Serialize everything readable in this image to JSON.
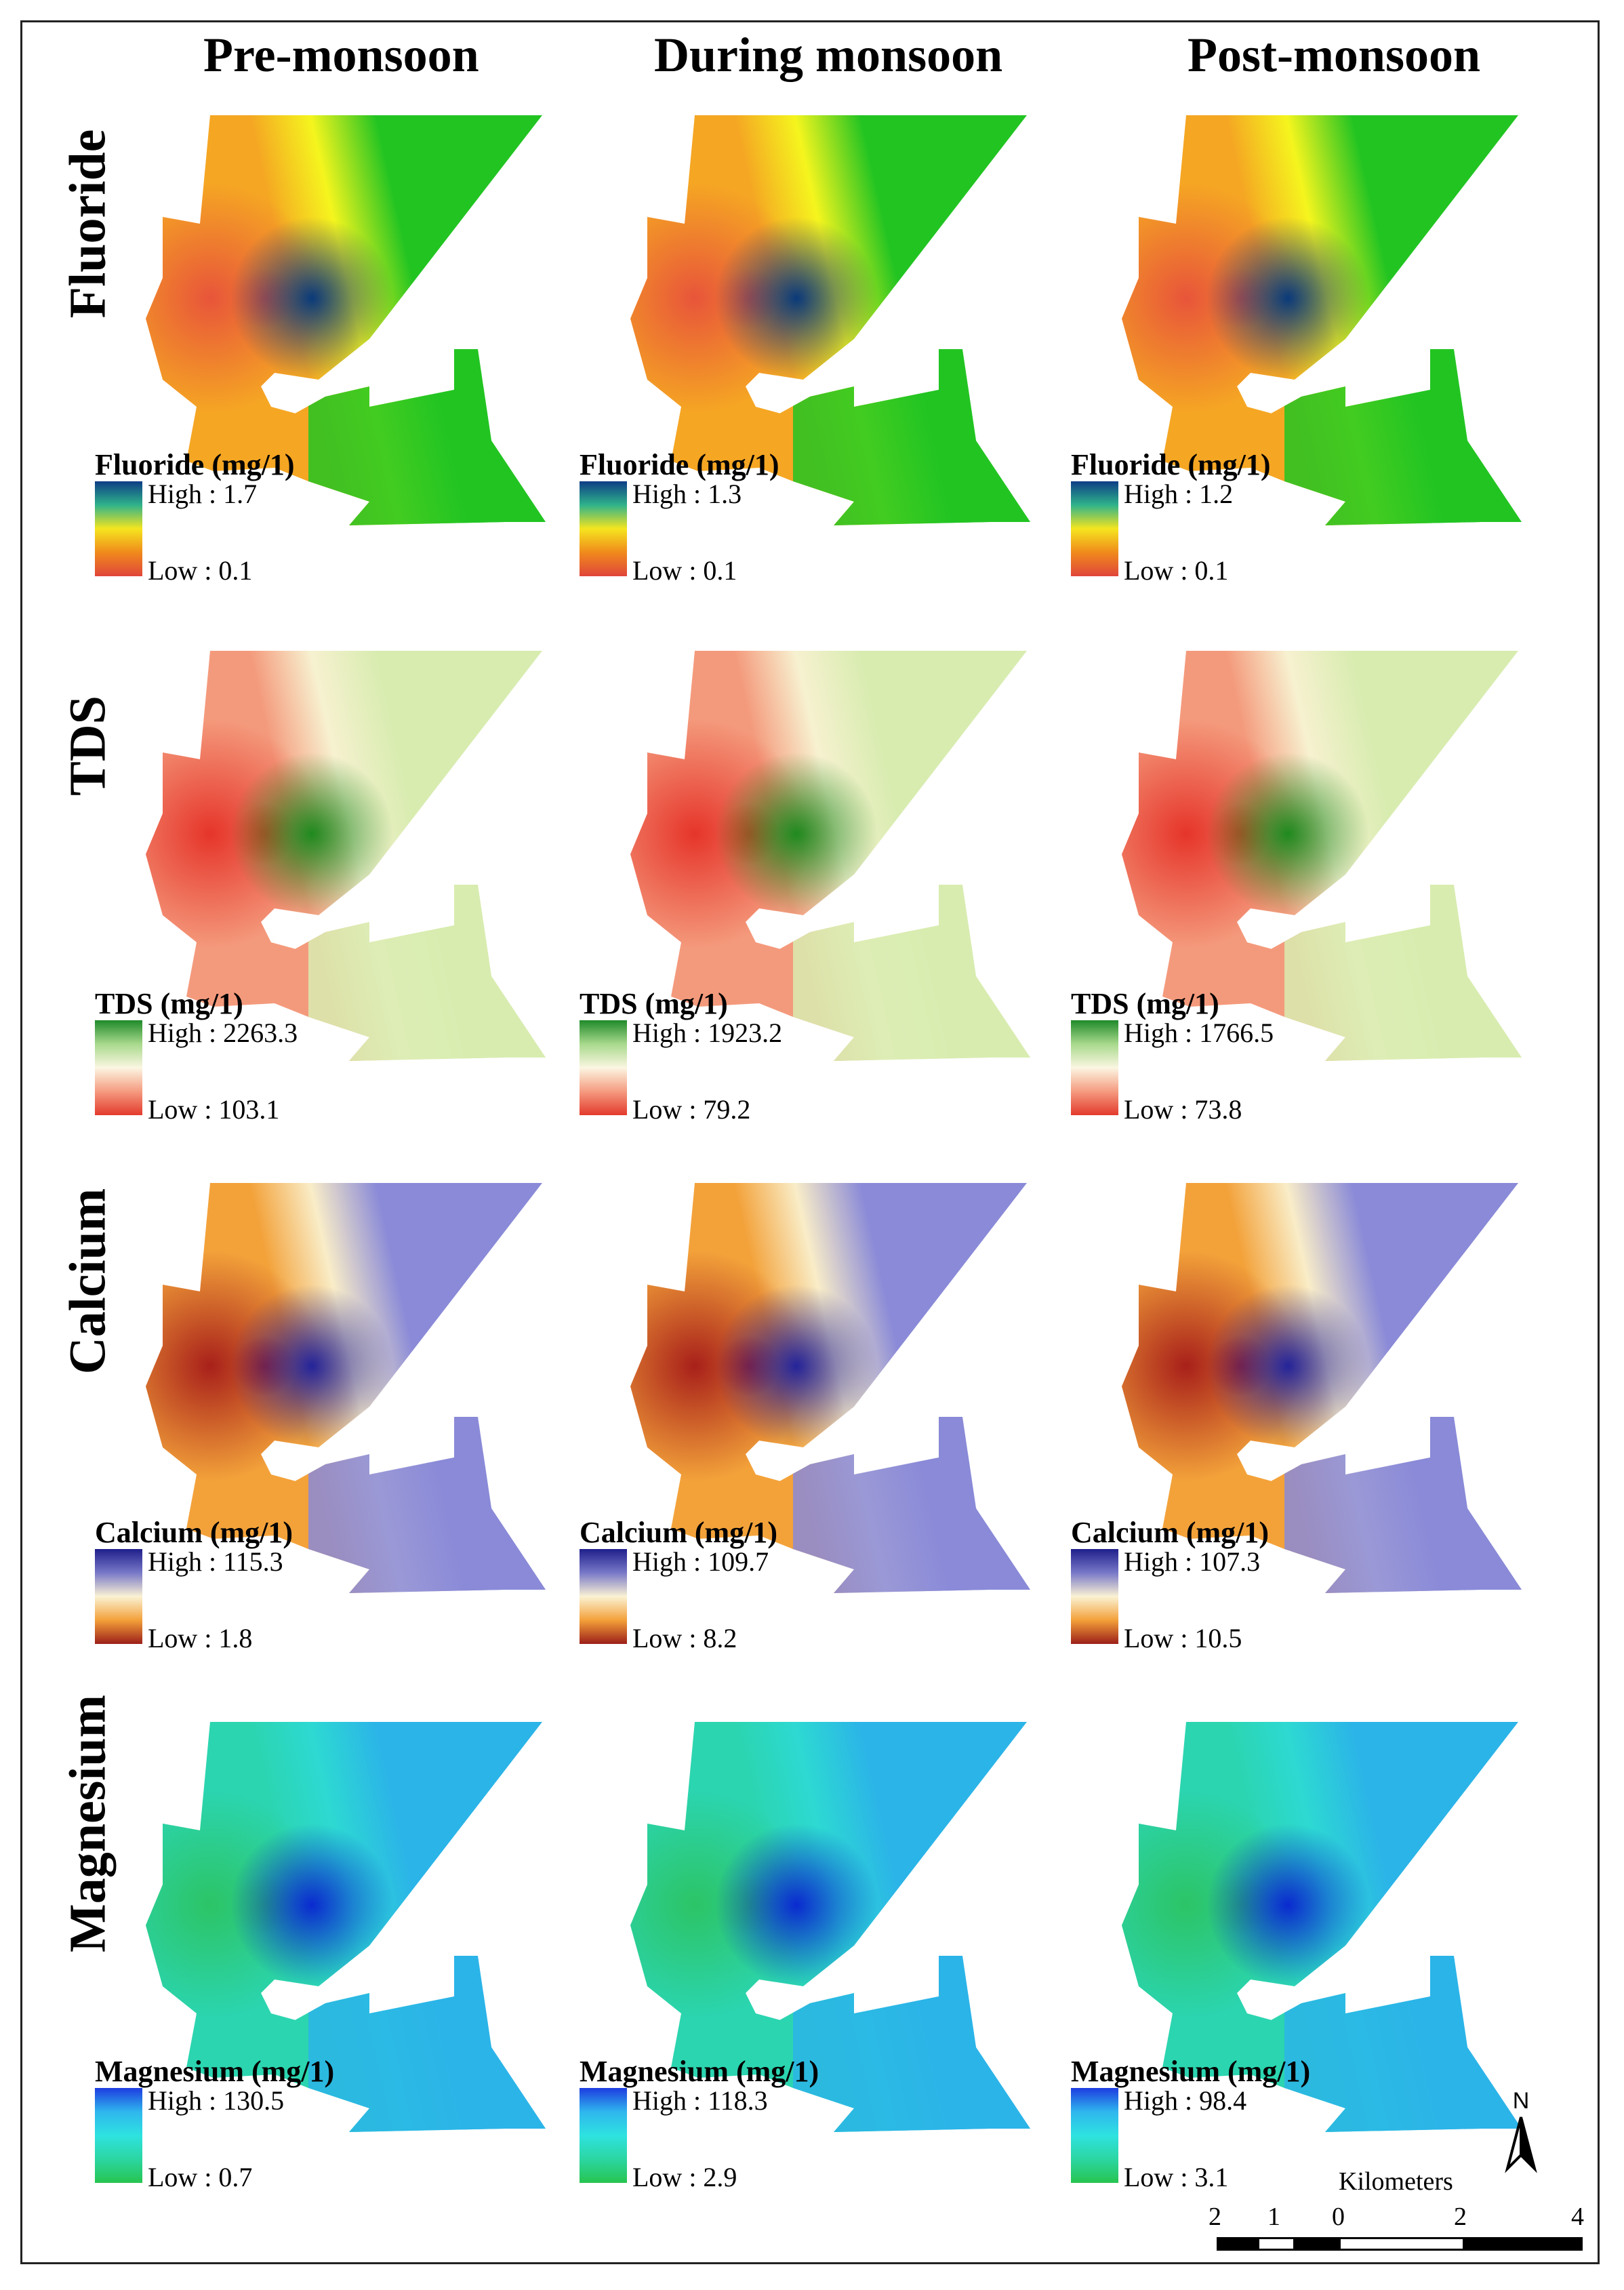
{
  "columns": [
    "Pre-monsoon",
    "During monsoon",
    "Post-monsoon"
  ],
  "rows": [
    {
      "name": "Fluoride",
      "theme": "fluoride",
      "legends": [
        {
          "title": "Fluoride (mg/1)",
          "high": "High : 1.7",
          "low": "Low : 0.1"
        },
        {
          "title": "Fluoride (mg/1)",
          "high": "High : 1.3",
          "low": "Low : 0.1"
        },
        {
          "title": "Fluoride (mg/1)",
          "high": "High : 1.2",
          "low": "Low : 0.1"
        }
      ]
    },
    {
      "name": "TDS",
      "theme": "tds",
      "legends": [
        {
          "title": "TDS (mg/1)",
          "high": "High : 2263.3",
          "low": "Low : 103.1"
        },
        {
          "title": "TDS (mg/1)",
          "high": "High : 1923.2",
          "low": "Low : 79.2"
        },
        {
          "title": "TDS (mg/1)",
          "high": "High : 1766.5",
          "low": "Low : 73.8"
        }
      ]
    },
    {
      "name": "Calcium",
      "theme": "calcium",
      "legends": [
        {
          "title": "Calcium (mg/1)",
          "high": "High : 115.3",
          "low": "Low : 1.8"
        },
        {
          "title": "Calcium (mg/1)",
          "high": "High : 109.7",
          "low": "Low : 8.2"
        },
        {
          "title": "Calcium (mg/1)",
          "high": "High : 107.3",
          "low": "Low : 10.5"
        }
      ]
    },
    {
      "name": "Magnesium",
      "theme": "magnesium",
      "legends": [
        {
          "title": "Magnesium (mg/1)",
          "high": "High : 130.5",
          "low": "Low : 0.7"
        },
        {
          "title": "Magnesium (mg/1)",
          "high": "High : 118.3",
          "low": "Low : 2.9"
        },
        {
          "title": "Magnesium (mg/1)",
          "high": "High : 98.4",
          "low": "Low : 3.1"
        }
      ]
    }
  ],
  "north_arrow": {
    "label": "N"
  },
  "scale": {
    "title": "Kilometers",
    "ticks": [
      "2",
      "1",
      "0",
      "2",
      "4"
    ]
  },
  "palettes": {
    "fluoride": {
      "hot": "#e8553a",
      "warm": "#f5a623",
      "mid": "#f5f51e",
      "cool": "#22c422",
      "cold": "#0a3a7a",
      "ramp": [
        "#0d3d86",
        "#2fb38a",
        "#f5e51e",
        "#f08a1c",
        "#e0453a"
      ]
    },
    "tds": {
      "hot": "#e6352a",
      "warm": "#f49a7c",
      "mid": "#f7f1d0",
      "cool": "#d8ecb0",
      "cold": "#1f8a1f",
      "ramp": [
        "#1f8a2a",
        "#a8d98c",
        "#fbf6e2",
        "#f59b80",
        "#e33a2c"
      ]
    },
    "calcium": {
      "hot": "#a8201a",
      "warm": "#f3a23a",
      "mid": "#f9edc8",
      "cool": "#8a8ad8",
      "cold": "#24249a",
      "ramp": [
        "#1f1f8c",
        "#7878c8",
        "#fbf2d4",
        "#f3a039",
        "#9c1f1a"
      ]
    },
    "magnesium": {
      "hot": "#2cc466",
      "warm": "#2bd5b0",
      "mid": "#2dd9d2",
      "cool": "#2bb4e8",
      "cold": "#0a2ad0",
      "ramp": [
        "#1d3ce0",
        "#2fb6ee",
        "#2ee2e0",
        "#2bd6a2",
        "#27c44f"
      ]
    }
  }
}
